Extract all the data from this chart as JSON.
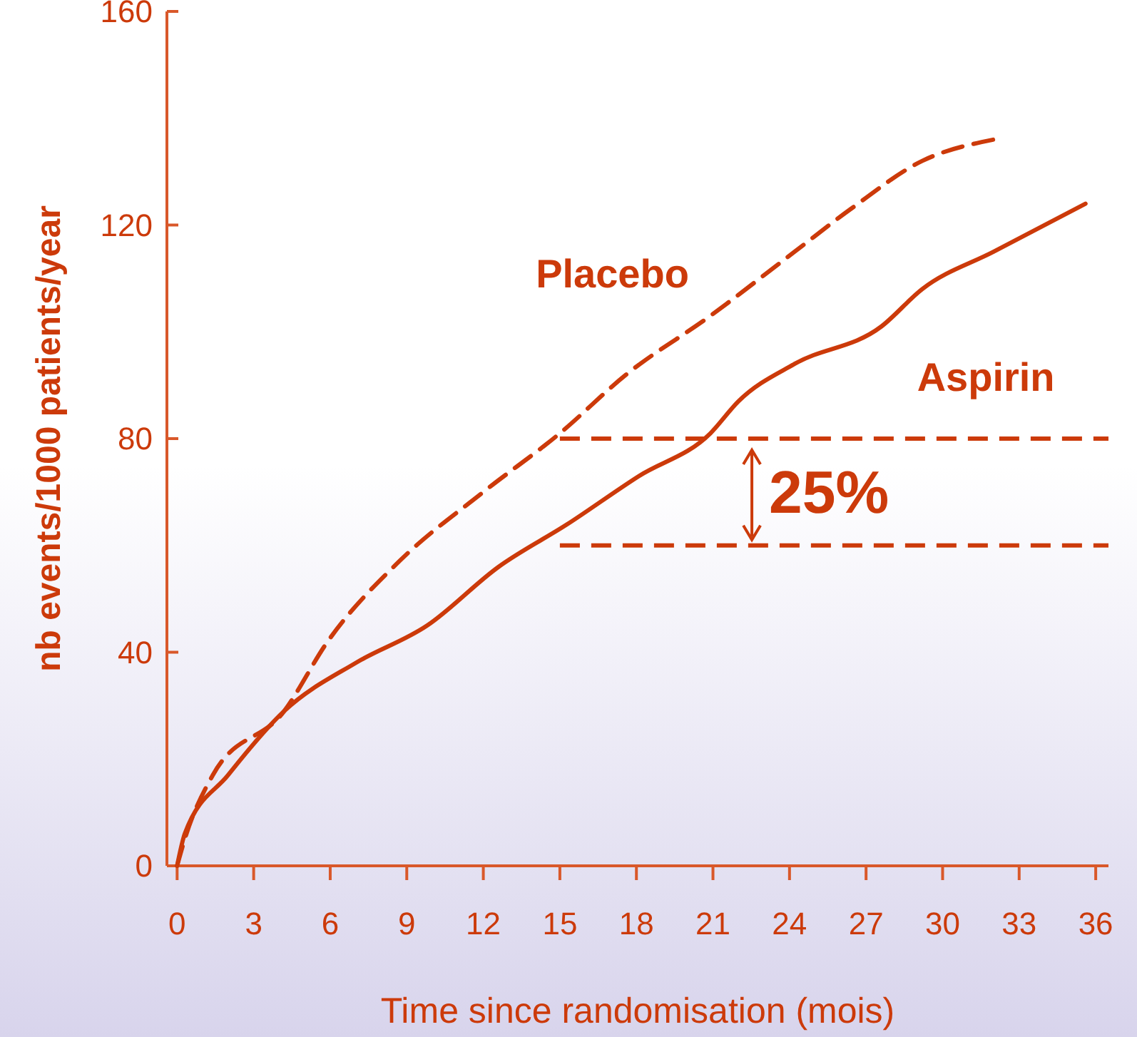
{
  "chart_data": {
    "type": "line",
    "xlabel": "Time since randomisation (mois)",
    "ylabel": "nb events/1000 patients/year",
    "xlim": [
      -0.4,
      36.5
    ],
    "xticks": [
      0,
      3,
      6,
      9,
      12,
      15,
      18,
      21,
      24,
      27,
      30,
      33,
      36
    ],
    "ylim": [
      0,
      160
    ],
    "yticks": [
      0,
      40,
      80,
      120,
      160
    ],
    "series": [
      {
        "name": "Placebo",
        "color": "#cc3a0a",
        "line_style": "dashed",
        "x": [
          0,
          0.3,
          1.4,
          4.2,
          5.9,
          8.7,
          12,
          15,
          17.6,
          20.9,
          24.2,
          26.4,
          29.2,
          32
        ],
        "values": [
          0,
          5,
          17,
          29,
          42,
          57,
          70,
          81,
          92,
          103,
          115,
          123,
          132,
          136
        ]
      },
      {
        "name": "Aspirin",
        "color": "#cc3a0a",
        "line_style": "solid",
        "x": [
          0,
          0.3,
          2,
          4.2,
          7,
          9.8,
          12.6,
          15.3,
          18.1,
          20.9,
          22,
          24.2,
          27.6,
          29.2,
          32,
          35.6
        ],
        "values": [
          0,
          6,
          17,
          29,
          38,
          45,
          56,
          64,
          73,
          81,
          87,
          94,
          101,
          108,
          115,
          124
        ]
      }
    ],
    "ref_lines": [
      {
        "axis": "y",
        "value": 80,
        "color": "#cc3a0a",
        "line_style": "dashed"
      },
      {
        "axis": "y",
        "value": 60,
        "color": "#cc3a0a",
        "line_style": "dashed"
      }
    ],
    "annotations": [
      "25%"
    ]
  }
}
